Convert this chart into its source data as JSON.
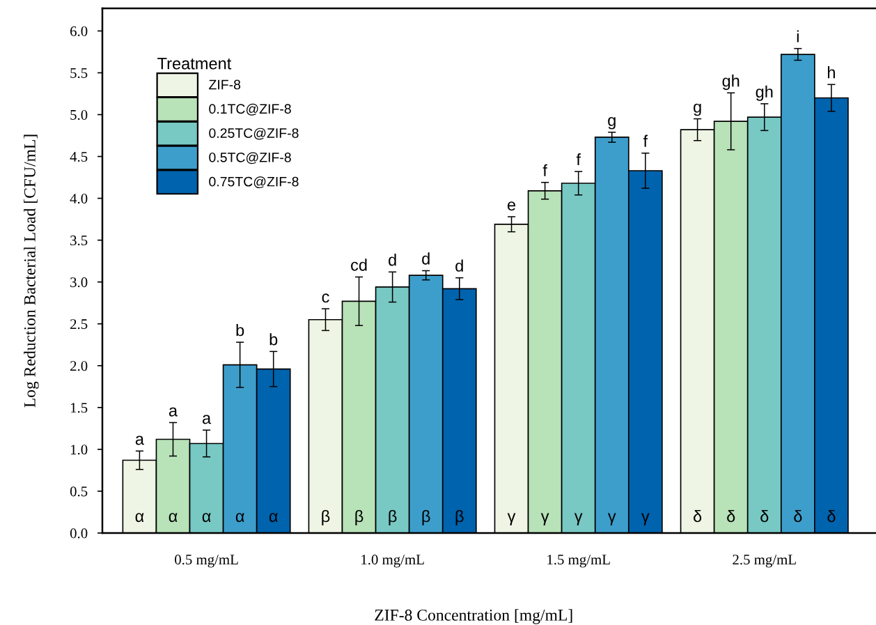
{
  "chart_data": {
    "type": "bar",
    "xlabel": "ZIF-8 Concentration [mg/mL]",
    "ylabel": "Log Reduction Bacterial Load [CFU/mL]",
    "legend_title": "Treatment",
    "categories": [
      "0.5 mg/mL",
      "1.0 mg/mL",
      "1.5 mg/mL",
      "2.5 mg/mL"
    ],
    "series": [
      {
        "name": "ZIF-8",
        "color": "#eff5e4",
        "values": [
          0.87,
          2.55,
          3.69,
          4.82
        ],
        "errors": [
          0.11,
          0.13,
          0.09,
          0.13
        ]
      },
      {
        "name": "0.1TC@ZIF-8",
        "color": "#b8e2b8",
        "values": [
          1.12,
          2.77,
          4.09,
          4.92
        ],
        "errors": [
          0.2,
          0.29,
          0.1,
          0.34
        ]
      },
      {
        "name": "0.25TC@ZIF-8",
        "color": "#78c8c4",
        "values": [
          1.07,
          2.94,
          4.18,
          4.97
        ],
        "errors": [
          0.16,
          0.18,
          0.14,
          0.16
        ]
      },
      {
        "name": "0.5TC@ZIF-8",
        "color": "#3d9ecb",
        "values": [
          2.01,
          3.08,
          4.73,
          5.72
        ],
        "errors": [
          0.27,
          0.055,
          0.06,
          0.07
        ]
      },
      {
        "name": "0.75TC@ZIF-8",
        "color": "#0063ad",
        "values": [
          1.96,
          2.92,
          4.33,
          5.2
        ],
        "errors": [
          0.21,
          0.13,
          0.21,
          0.16
        ]
      }
    ],
    "annotations": [
      "a",
      "a",
      "a",
      "b",
      "b",
      "c",
      "cd",
      "d",
      "d",
      "d",
      "e",
      "f",
      "f",
      "g",
      "f",
      "g",
      "gh",
      "gh",
      "i",
      "h",
      "α",
      "α",
      "α",
      "α",
      "α",
      "β",
      "β",
      "β",
      "β",
      "β",
      "γ",
      "γ",
      "γ",
      "γ",
      "γ",
      "δ",
      "δ",
      "δ",
      "δ",
      "δ"
    ],
    "ylim": [
      0,
      6.27
    ],
    "yticks": [
      {
        "value": 0,
        "label": "0.0"
      },
      {
        "value": 0.5,
        "label": "0.5"
      },
      {
        "value": 1,
        "label": "1.0"
      },
      {
        "value": 1.5,
        "label": "1.5"
      },
      {
        "value": 2,
        "label": "2.0"
      },
      {
        "value": 2.5,
        "label": "2.5"
      },
      {
        "value": 3,
        "label": "3.0"
      },
      {
        "value": 3.5,
        "label": "3.5"
      },
      {
        "value": 4,
        "label": "4.0"
      },
      {
        "value": 4.5,
        "label": "4.5"
      },
      {
        "value": 5,
        "label": "5.0"
      },
      {
        "value": 5.5,
        "label": "5.5"
      },
      {
        "value": 6,
        "label": "6.0"
      }
    ],
    "grid": false,
    "legend": "top left"
  }
}
